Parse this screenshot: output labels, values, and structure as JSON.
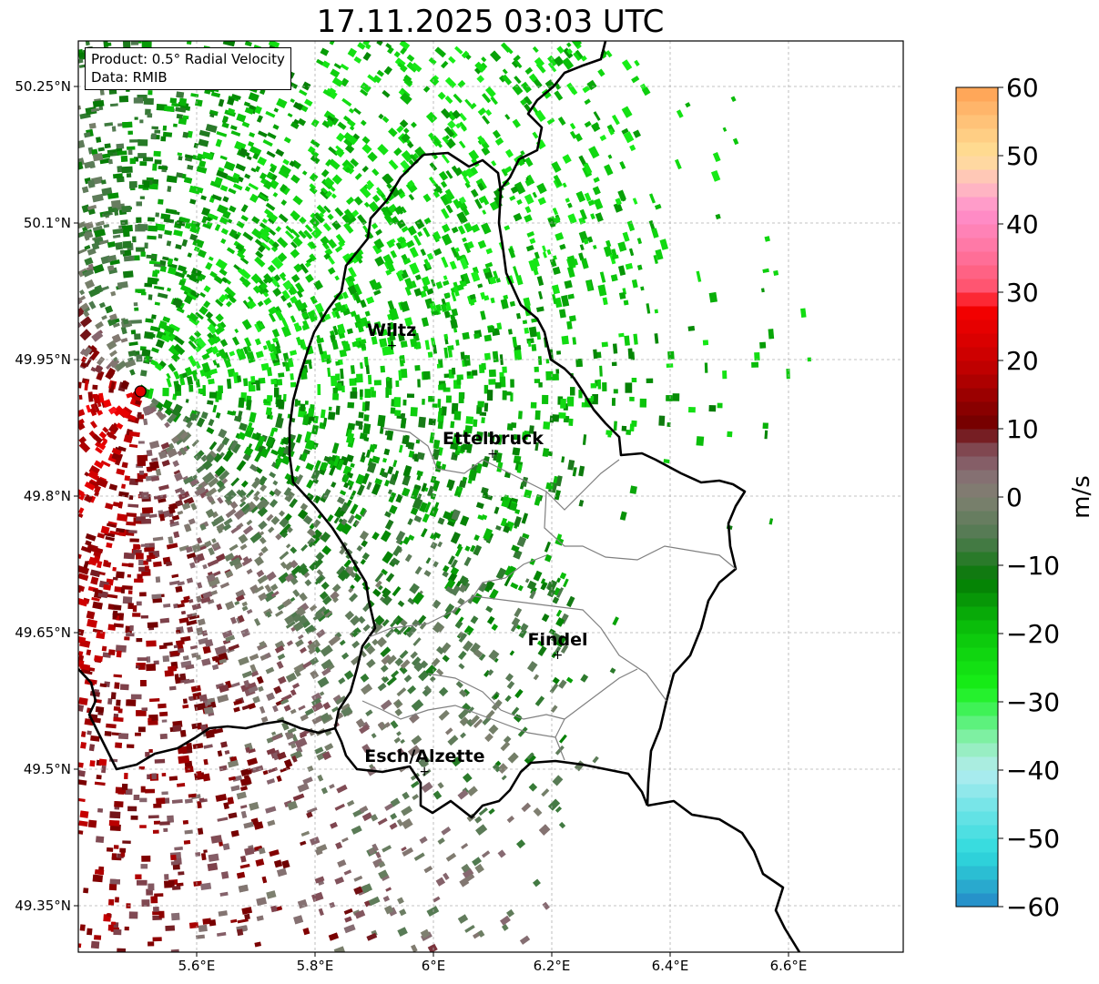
{
  "title": "17.11.2025 03:03 UTC",
  "info": {
    "product": "Product: 0.5° Radial Velocity",
    "data": "Data: RMIB"
  },
  "map": {
    "lon_range": [
      5.4,
      6.8
    ],
    "lat_range": [
      49.28,
      50.3
    ],
    "x_ticks": [
      "5.6°E",
      "5.8°E",
      "6°E",
      "6.2°E",
      "6.4°E",
      "6.6°E"
    ],
    "x_tick_values": [
      5.6,
      5.8,
      6.0,
      6.2,
      6.4,
      6.6
    ],
    "y_ticks": [
      "50.25°N",
      "50.1°N",
      "49.95°N",
      "49.8°N",
      "49.65°N",
      "49.5°N",
      "49.35°N"
    ],
    "y_tick_values": [
      50.25,
      50.1,
      49.95,
      49.8,
      49.65,
      49.5,
      49.35
    ],
    "radar_site": {
      "lon": 5.505,
      "lat": 49.915
    },
    "cities": [
      {
        "name": "Wiltz",
        "lon": 5.93,
        "lat": 49.966
      },
      {
        "name": "Ettelbruck",
        "lon": 6.1,
        "lat": 49.847
      },
      {
        "name": "Findel",
        "lon": 6.21,
        "lat": 49.626
      },
      {
        "name": "Esch/Alzette",
        "lon": 5.985,
        "lat": 49.498
      }
    ]
  },
  "colorbar": {
    "label": "m/s",
    "min": -60,
    "max": 60,
    "ticks": [
      "60",
      "50",
      "40",
      "30",
      "20",
      "10",
      "0",
      "−10",
      "−20",
      "−30",
      "−40",
      "−50",
      "−60"
    ],
    "tick_values": [
      60,
      50,
      40,
      30,
      20,
      10,
      0,
      -10,
      -20,
      -30,
      -40,
      -50,
      -60
    ],
    "stops": [
      {
        "v": -60,
        "c": "#2486c8"
      },
      {
        "v": -56,
        "c": "#2ab4d0"
      },
      {
        "v": -52,
        "c": "#2fdadd"
      },
      {
        "v": -46,
        "c": "#6ce3e6"
      },
      {
        "v": -40,
        "c": "#b3ecef"
      },
      {
        "v": -36,
        "c": "#8fefb4"
      },
      {
        "v": -32,
        "c": "#4cf26b"
      },
      {
        "v": -28,
        "c": "#18f018"
      },
      {
        "v": -20,
        "c": "#0bc60b"
      },
      {
        "v": -12,
        "c": "#047a04"
      },
      {
        "v": -6,
        "c": "#4f7a4f"
      },
      {
        "v": 0,
        "c": "#7f8070"
      },
      {
        "v": 4,
        "c": "#876a72"
      },
      {
        "v": 8,
        "c": "#7d3b45"
      },
      {
        "v": 10,
        "c": "#6e0000"
      },
      {
        "v": 20,
        "c": "#c80000"
      },
      {
        "v": 28,
        "c": "#f80000"
      },
      {
        "v": 30,
        "c": "#ff4f67"
      },
      {
        "v": 36,
        "c": "#ff74a0"
      },
      {
        "v": 42,
        "c": "#ff90cc"
      },
      {
        "v": 46,
        "c": "#ffc0c0"
      },
      {
        "v": 50,
        "c": "#ffe096"
      },
      {
        "v": 56,
        "c": "#ffbc72"
      },
      {
        "v": 60,
        "c": "#ffa050"
      }
    ]
  }
}
